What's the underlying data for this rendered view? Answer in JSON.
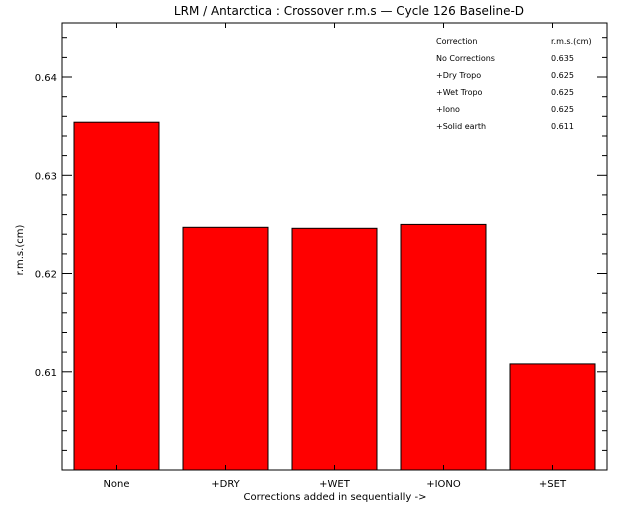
{
  "chart_data": {
    "type": "bar",
    "title": "LRM / Antarctica : Crossover r.m.s — Cycle 126 Baseline-D",
    "xlabel": "Corrections added in sequentially ->",
    "ylabel": "r.m.s.(cm)",
    "categories": [
      "None",
      "+DRY",
      "+WET",
      "+IONO",
      "+SET"
    ],
    "values": [
      0.6354,
      0.6247,
      0.6246,
      0.625,
      0.6108
    ],
    "ylim": [
      0.6,
      0.6455
    ],
    "yticks": [
      "0.61",
      "0.62",
      "0.63",
      "0.64"
    ],
    "bar_color": "#ff0000",
    "grid": false,
    "annotation_table": {
      "header": [
        "Correction",
        "r.m.s.(cm)"
      ],
      "rows": [
        [
          "No Corrections",
          "0.635"
        ],
        [
          "+Dry Tropo",
          "0.625"
        ],
        [
          "+Wet Tropo",
          "0.625"
        ],
        [
          "+Iono",
          "0.625"
        ],
        [
          "+Solid earth",
          "0.611"
        ]
      ],
      "placement": "top-right"
    }
  }
}
